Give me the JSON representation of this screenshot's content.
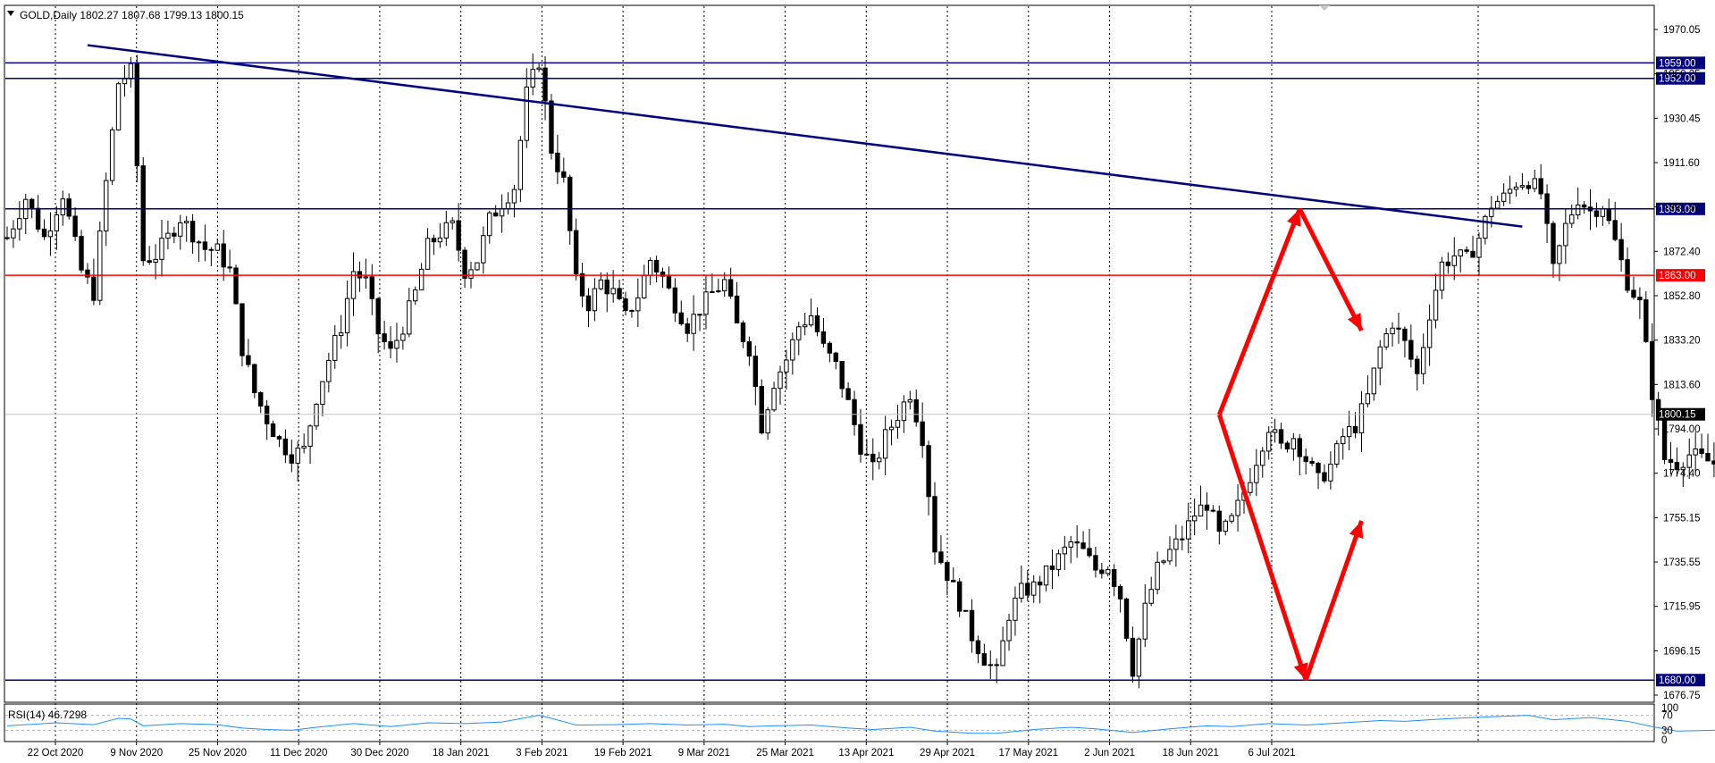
{
  "chart_data": [
    {
      "type": "candlestick",
      "symbol_timeframe": "GOLD,Daily",
      "ohlc_text": "1802.27 1807.68 1799.13 1800.15",
      "title": "GOLD,Daily  1802.27 1807.68 1799.13 1800.15",
      "ylim": [
        1670,
        1985
      ],
      "y_ticks": [
        "1970.05",
        "1950.25",
        "1930.45",
        "1911.60",
        "1891.80",
        "1872.40",
        "1852.80",
        "1833.20",
        "1813.60",
        "1794.00",
        "1774.40",
        "1755.15",
        "1735.55",
        "1715.95",
        "1696.15",
        "1676.75"
      ],
      "x_ticks": [
        "22 Oct 2020",
        "9 Nov 2020",
        "25 Nov 2020",
        "11 Dec 2020",
        "30 Dec 2020",
        "18 Jan 2021",
        "3 Feb 2021",
        "19 Feb 2021",
        "9 Mar 2021",
        "25 Mar 2021",
        "13 Apr 2021",
        "29 Apr 2021",
        "17 May 2021",
        "2 Jun 2021",
        "18 Jun 2021",
        "6 Jul 2021"
      ],
      "levels": [
        {
          "value": 1959.0,
          "label": "1959.00",
          "color": "#000080"
        },
        {
          "value": 1952.0,
          "label": "1952.00",
          "color": "#000080"
        },
        {
          "value": 1893.0,
          "label": "1893.00",
          "color": "#000080"
        },
        {
          "value": 1863.0,
          "label": "1863.00",
          "color": "#ff0000"
        },
        {
          "value": 1680.0,
          "label": "1680.00",
          "color": "#000080"
        }
      ],
      "current_price": {
        "value": 1800.15,
        "label": "1800.15"
      },
      "trendline": {
        "from": {
          "bar": 13,
          "price": 1967
        },
        "to": {
          "bar": 245,
          "price": 1885
        },
        "color": "#000080"
      },
      "arrows": [
        {
          "from": {
            "bar": 196,
            "price": 1800
          },
          "to": {
            "bar": 209,
            "price": 1893
          }
        },
        {
          "from": {
            "bar": 209,
            "price": 1893
          },
          "to": {
            "bar": 219,
            "price": 1838
          }
        },
        {
          "from": {
            "bar": 196,
            "price": 1800
          },
          "to": {
            "bar": 210,
            "price": 1680
          }
        },
        {
          "from": {
            "bar": 210,
            "price": 1680
          },
          "to": {
            "bar": 219,
            "price": 1752
          }
        }
      ],
      "arrow_color": "#ff0000",
      "close_path": [
        [
          0,
          1880
        ],
        [
          3,
          1898
        ],
        [
          6,
          1880
        ],
        [
          9,
          1900
        ],
        [
          12,
          1865
        ],
        [
          14,
          1855
        ],
        [
          16,
          1905
        ],
        [
          18,
          1950
        ],
        [
          20,
          1955
        ],
        [
          22,
          1870
        ],
        [
          24,
          1872
        ],
        [
          26,
          1880
        ],
        [
          28,
          1889
        ],
        [
          30,
          1882
        ],
        [
          32,
          1875
        ],
        [
          34,
          1874
        ],
        [
          36,
          1865
        ],
        [
          38,
          1830
        ],
        [
          40,
          1810
        ],
        [
          42,
          1798
        ],
        [
          44,
          1788
        ],
        [
          46,
          1782
        ],
        [
          48,
          1784
        ],
        [
          50,
          1808
        ],
        [
          52,
          1825
        ],
        [
          54,
          1840
        ],
        [
          56,
          1865
        ],
        [
          58,
          1860
        ],
        [
          60,
          1837
        ],
        [
          62,
          1828
        ],
        [
          64,
          1840
        ],
        [
          66,
          1855
        ],
        [
          68,
          1876
        ],
        [
          70,
          1882
        ],
        [
          72,
          1885
        ],
        [
          74,
          1865
        ],
        [
          76,
          1870
        ],
        [
          78,
          1888
        ],
        [
          80,
          1896
        ],
        [
          82,
          1903
        ],
        [
          84,
          1945
        ],
        [
          86,
          1960
        ],
        [
          88,
          1920
        ],
        [
          90,
          1905
        ],
        [
          92,
          1860
        ],
        [
          94,
          1850
        ],
        [
          96,
          1860
        ],
        [
          98,
          1855
        ],
        [
          100,
          1844
        ],
        [
          102,
          1854
        ],
        [
          104,
          1870
        ],
        [
          106,
          1862
        ],
        [
          108,
          1850
        ],
        [
          110,
          1840
        ],
        [
          112,
          1848
        ],
        [
          114,
          1855
        ],
        [
          116,
          1860
        ],
        [
          118,
          1840
        ],
        [
          120,
          1830
        ],
        [
          122,
          1795
        ],
        [
          124,
          1815
        ],
        [
          126,
          1825
        ],
        [
          128,
          1840
        ],
        [
          130,
          1845
        ],
        [
          132,
          1830
        ],
        [
          134,
          1822
        ],
        [
          136,
          1805
        ],
        [
          138,
          1786
        ],
        [
          140,
          1775
        ],
        [
          142,
          1790
        ],
        [
          144,
          1800
        ],
        [
          146,
          1810
        ],
        [
          148,
          1790
        ],
        [
          150,
          1740
        ],
        [
          152,
          1728
        ],
        [
          154,
          1715
        ],
        [
          156,
          1700
        ],
        [
          158,
          1690
        ],
        [
          160,
          1683
        ],
        [
          162,
          1710
        ],
        [
          164,
          1720
        ],
        [
          166,
          1722
        ],
        [
          168,
          1728
        ],
        [
          170,
          1735
        ],
        [
          172,
          1742
        ],
        [
          174,
          1738
        ],
        [
          176,
          1730
        ],
        [
          178,
          1732
        ],
        [
          180,
          1718
        ],
        [
          182,
          1685
        ],
        [
          184,
          1712
        ],
        [
          186,
          1730
        ],
        [
          188,
          1738
        ],
        [
          190,
          1745
        ],
        [
          192,
          1755
        ],
        [
          194,
          1760
        ],
        [
          196,
          1745
        ],
        [
          198,
          1752
        ],
        [
          200,
          1765
        ],
        [
          202,
          1780
        ],
        [
          204,
          1795
        ],
        [
          206,
          1785
        ],
        [
          208,
          1790
        ],
        [
          210,
          1780
        ],
        [
          212,
          1770
        ],
        [
          214,
          1777
        ],
        [
          216,
          1790
        ],
        [
          218,
          1795
        ],
        [
          220,
          1808
        ],
        [
          222,
          1830
        ],
        [
          224,
          1842
        ],
        [
          226,
          1832
        ],
        [
          228,
          1818
        ],
        [
          230,
          1846
        ],
        [
          232,
          1868
        ],
        [
          234,
          1872
        ],
        [
          236,
          1870
        ],
        [
          238,
          1880
        ],
        [
          240,
          1895
        ],
        [
          242,
          1898
        ],
        [
          244,
          1905
        ],
        [
          246,
          1906
        ],
        [
          248,
          1900
        ],
        [
          250,
          1865
        ],
        [
          252,
          1885
        ],
        [
          254,
          1898
        ],
        [
          256,
          1892
        ],
        [
          258,
          1895
        ],
        [
          260,
          1878
        ],
        [
          262,
          1860
        ],
        [
          264,
          1850
        ],
        [
          266,
          1810
        ],
        [
          268,
          1780
        ],
        [
          270,
          1778
        ],
        [
          272,
          1782
        ],
        [
          274,
          1780
        ],
        [
          276,
          1778
        ],
        [
          278,
          1782
        ],
        [
          280,
          1765
        ],
        [
          282,
          1775
        ],
        [
          284,
          1785
        ],
        [
          286,
          1795
        ],
        [
          288,
          1806
        ],
        [
          290,
          1800
        ]
      ]
    },
    {
      "type": "line",
      "title": "RSI(14) 46.7298",
      "ylim": [
        0,
        100
      ],
      "y_ticks": [
        "100",
        "70",
        "30",
        "0"
      ],
      "levels": [
        70,
        30
      ],
      "close_path": [
        [
          0,
          42
        ],
        [
          8,
          50
        ],
        [
          14,
          45
        ],
        [
          18,
          62
        ],
        [
          20,
          60
        ],
        [
          22,
          42
        ],
        [
          28,
          48
        ],
        [
          34,
          45
        ],
        [
          38,
          36
        ],
        [
          42,
          32
        ],
        [
          46,
          30
        ],
        [
          50,
          38
        ],
        [
          56,
          48
        ],
        [
          62,
          40
        ],
        [
          68,
          50
        ],
        [
          74,
          48
        ],
        [
          80,
          52
        ],
        [
          84,
          64
        ],
        [
          86,
          70
        ],
        [
          88,
          62
        ],
        [
          92,
          44
        ],
        [
          98,
          45
        ],
        [
          104,
          48
        ],
        [
          110,
          44
        ],
        [
          116,
          46
        ],
        [
          120,
          40
        ],
        [
          124,
          42
        ],
        [
          130,
          44
        ],
        [
          136,
          36
        ],
        [
          140,
          32
        ],
        [
          146,
          38
        ],
        [
          150,
          28
        ],
        [
          156,
          22
        ],
        [
          160,
          22
        ],
        [
          166,
          32
        ],
        [
          172,
          38
        ],
        [
          176,
          34
        ],
        [
          182,
          24
        ],
        [
          188,
          34
        ],
        [
          194,
          42
        ],
        [
          198,
          40
        ],
        [
          204,
          48
        ],
        [
          210,
          44
        ],
        [
          216,
          50
        ],
        [
          222,
          56
        ],
        [
          226,
          54
        ],
        [
          230,
          58
        ],
        [
          234,
          62
        ],
        [
          240,
          66
        ],
        [
          246,
          70
        ],
        [
          250,
          58
        ],
        [
          256,
          64
        ],
        [
          262,
          54
        ],
        [
          266,
          40
        ],
        [
          270,
          28
        ],
        [
          276,
          30
        ],
        [
          282,
          32
        ],
        [
          286,
          40
        ],
        [
          290,
          46.7
        ]
      ],
      "color": "#1e90ff"
    }
  ]
}
